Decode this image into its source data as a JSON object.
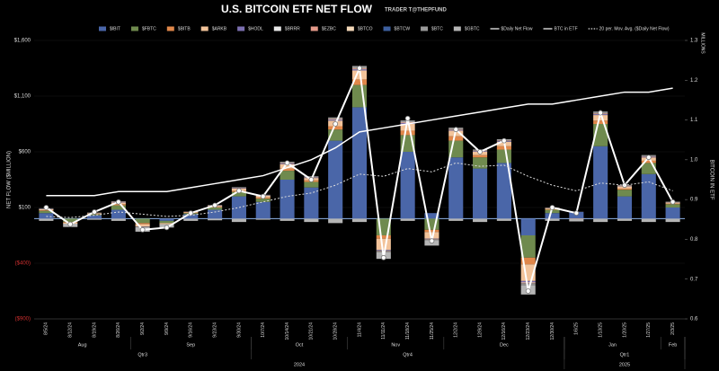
{
  "chart_data": {
    "type": "bar",
    "title": "U.S. BITCOIN ETF NET FLOW",
    "subtitle": "TRADER T@THEPFUND",
    "y_label": "NET FLOW ($MILLION)",
    "y2_label": "BITCOIN IN ETF",
    "y2_unit": "MILLIONS",
    "categories": [
      "8/5/24",
      "8/12/24",
      "8/19/24",
      "8/26/24",
      "9/2/24",
      "9/9/24",
      "9/16/24",
      "9/23/24",
      "9/30/24",
      "10/7/24",
      "10/14/24",
      "10/21/24",
      "10/28/24",
      "11/4/24",
      "11/11/24",
      "11/18/24",
      "11/25/24",
      "12/2/24",
      "12/9/24",
      "12/16/24",
      "12/23/24",
      "12/30/24",
      "1/6/25",
      "1/13/25",
      "1/20/25",
      "1/27/25",
      "2/3/25"
    ],
    "month_labels": [
      "Aug",
      "Sep",
      "Oct",
      "Nov",
      "Dec",
      "Jan",
      "Feb"
    ],
    "quarter_labels": [
      "Qtr3",
      "Qtr4",
      "Qtr1"
    ],
    "year_labels": [
      "2024",
      "2025"
    ],
    "ylim": [
      -900,
      1600
    ],
    "yticks": [
      {
        "value": -900,
        "label": "($900)"
      },
      {
        "value": -400,
        "label": "($400)"
      },
      {
        "value": 100,
        "label": "$100"
      },
      {
        "value": 600,
        "label": "$600"
      },
      {
        "value": 1100,
        "label": "$1,100"
      },
      {
        "value": 1600,
        "label": "$1,600"
      }
    ],
    "y2lim": [
      0.6,
      1.3
    ],
    "y2ticks": [
      0.6,
      0.7,
      0.8,
      0.9,
      {
        "value": 1,
        "label": "1.0"
      },
      1.1,
      1.2,
      1.3
    ],
    "legend": "top",
    "series": [
      {
        "name": "$IBIT",
        "type": "bar",
        "color": "#4a66a8",
        "values": [
          50,
          0,
          30,
          80,
          0,
          -20,
          40,
          80,
          200,
          150,
          350,
          280,
          700,
          1000,
          0,
          600,
          50,
          550,
          450,
          500,
          -150,
          50,
          60,
          650,
          200,
          400,
          100
        ]
      },
      {
        "name": "$FBTC",
        "type": "bar",
        "color": "#6f8a4e",
        "values": [
          20,
          -30,
          10,
          40,
          -40,
          -20,
          10,
          20,
          40,
          30,
          80,
          50,
          100,
          200,
          -150,
          150,
          -100,
          150,
          100,
          120,
          -200,
          30,
          0,
          200,
          60,
          100,
          30
        ]
      },
      {
        "name": "$BITB",
        "type": "bar",
        "color": "#e0874a",
        "values": [
          5,
          -5,
          5,
          10,
          -10,
          0,
          5,
          5,
          10,
          10,
          20,
          15,
          30,
          50,
          -30,
          40,
          -20,
          40,
          20,
          30,
          -60,
          5,
          0,
          30,
          10,
          20,
          5
        ]
      },
      {
        "name": "$ARKB",
        "type": "bar",
        "color": "#f2c39a",
        "values": [
          10,
          -10,
          5,
          15,
          -20,
          -10,
          5,
          10,
          20,
          15,
          40,
          20,
          50,
          80,
          -100,
          60,
          -60,
          50,
          30,
          40,
          -150,
          10,
          -5,
          50,
          20,
          30,
          10
        ]
      },
      {
        "name": "$HODL",
        "type": "bar",
        "color": "#7b6fb0",
        "values": [
          2,
          0,
          1,
          3,
          -2,
          0,
          1,
          2,
          3,
          2,
          5,
          4,
          8,
          10,
          -5,
          8,
          -3,
          6,
          5,
          6,
          -10,
          1,
          1,
          8,
          3,
          5,
          2
        ]
      },
      {
        "name": "$BRRR",
        "type": "bar",
        "color": "#e8e8e8",
        "values": [
          1,
          0,
          1,
          1,
          -1,
          0,
          0,
          1,
          1,
          1,
          2,
          2,
          3,
          4,
          -2,
          3,
          -1,
          3,
          2,
          2,
          -4,
          0,
          0,
          3,
          1,
          2,
          1
        ]
      },
      {
        "name": "$EZBC",
        "type": "bar",
        "color": "#e59a8a",
        "values": [
          1,
          0,
          1,
          2,
          -1,
          0,
          1,
          1,
          2,
          1,
          3,
          2,
          4,
          6,
          -3,
          5,
          -2,
          4,
          3,
          3,
          -6,
          1,
          0,
          5,
          2,
          3,
          1
        ]
      },
      {
        "name": "$BTCO",
        "type": "bar",
        "color": "#f3d8b8",
        "values": [
          1,
          0,
          0,
          1,
          -1,
          0,
          0,
          1,
          1,
          1,
          2,
          1,
          3,
          4,
          -2,
          3,
          -1,
          3,
          2,
          2,
          -4,
          0,
          0,
          3,
          1,
          2,
          1
        ]
      },
      {
        "name": "$BTCW",
        "type": "bar",
        "color": "#3d5f9e",
        "values": [
          0,
          0,
          0,
          1,
          0,
          0,
          0,
          0,
          1,
          0,
          1,
          1,
          1,
          2,
          -1,
          1,
          0,
          1,
          1,
          1,
          -2,
          0,
          0,
          1,
          0,
          1,
          0
        ]
      },
      {
        "name": "$BTC",
        "type": "bar",
        "color": "#9a9a9a",
        "values": [
          3,
          1,
          2,
          4,
          -2,
          1,
          2,
          3,
          5,
          4,
          8,
          6,
          10,
          15,
          -8,
          12,
          -5,
          10,
          8,
          9,
          -15,
          2,
          1,
          12,
          4,
          8,
          3
        ]
      },
      {
        "name": "$GBTC",
        "type": "bar",
        "color": "#b5b5b5",
        "values": [
          -20,
          -30,
          -10,
          -20,
          -40,
          -30,
          -20,
          -15,
          -30,
          -10,
          -20,
          -30,
          -40,
          -30,
          -60,
          -20,
          -50,
          -20,
          -30,
          -20,
          -80,
          -20,
          -20,
          -30,
          -20,
          -30,
          -30
        ]
      },
      {
        "name": "$Daily Net Flow",
        "type": "line",
        "color": "#ffffff",
        "markers": true,
        "values": [
          100,
          -50,
          60,
          150,
          -100,
          -80,
          50,
          120,
          250,
          200,
          500,
          350,
          850,
          1350,
          -350,
          900,
          -200,
          800,
          600,
          700,
          -650,
          100,
          50,
          950,
          300,
          550,
          150
        ]
      },
      {
        "name": "BTC in ETF",
        "type": "line",
        "axis": "y2",
        "color": "#ffffff",
        "values": [
          0.91,
          0.91,
          0.91,
          0.92,
          0.92,
          0.92,
          0.93,
          0.94,
          0.95,
          0.96,
          0.98,
          1.0,
          1.03,
          1.07,
          1.08,
          1.09,
          1.1,
          1.11,
          1.12,
          1.13,
          1.14,
          1.14,
          1.15,
          1.16,
          1.17,
          1.17,
          1.18
        ]
      },
      {
        "name": "20 per. Mov. Avg. ($Daily Net Flow)",
        "type": "line",
        "dashed": true,
        "color": "#dddddd",
        "values": [
          20,
          10,
          30,
          60,
          40,
          20,
          30,
          60,
          100,
          150,
          200,
          230,
          300,
          400,
          380,
          450,
          420,
          500,
          470,
          480,
          380,
          300,
          250,
          320,
          300,
          330,
          250
        ]
      }
    ]
  }
}
